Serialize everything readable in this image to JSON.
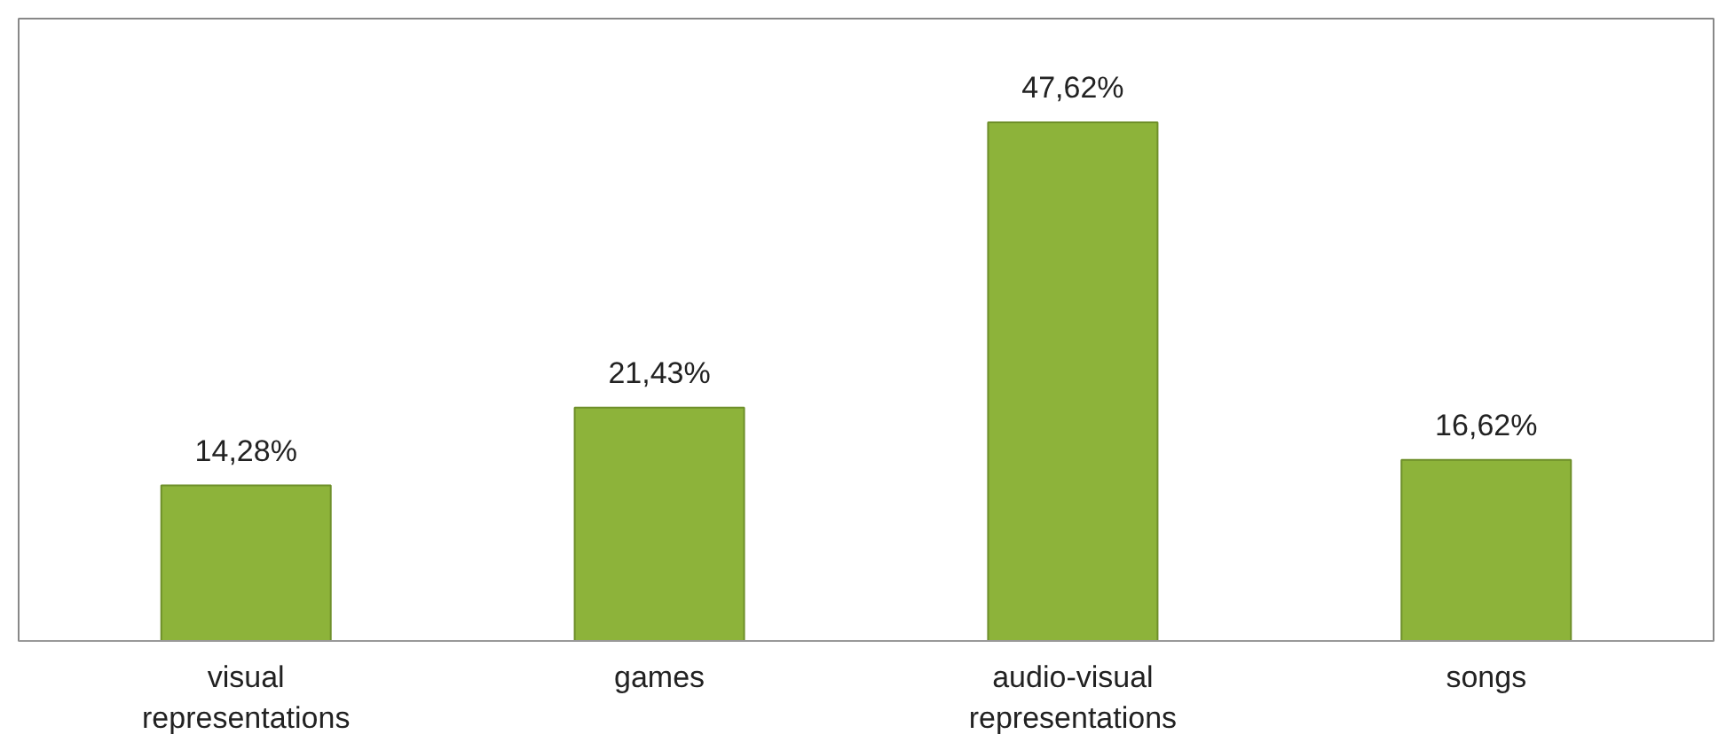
{
  "chart_data": {
    "type": "bar",
    "categories": [
      "visual representations",
      "games",
      "audio-visual representations",
      "songs"
    ],
    "values": [
      14.28,
      21.43,
      47.62,
      16.62
    ],
    "value_labels": [
      "14,28%",
      "21,43%",
      "47,62%",
      "16,62%"
    ],
    "color": "#8db33a"
  }
}
